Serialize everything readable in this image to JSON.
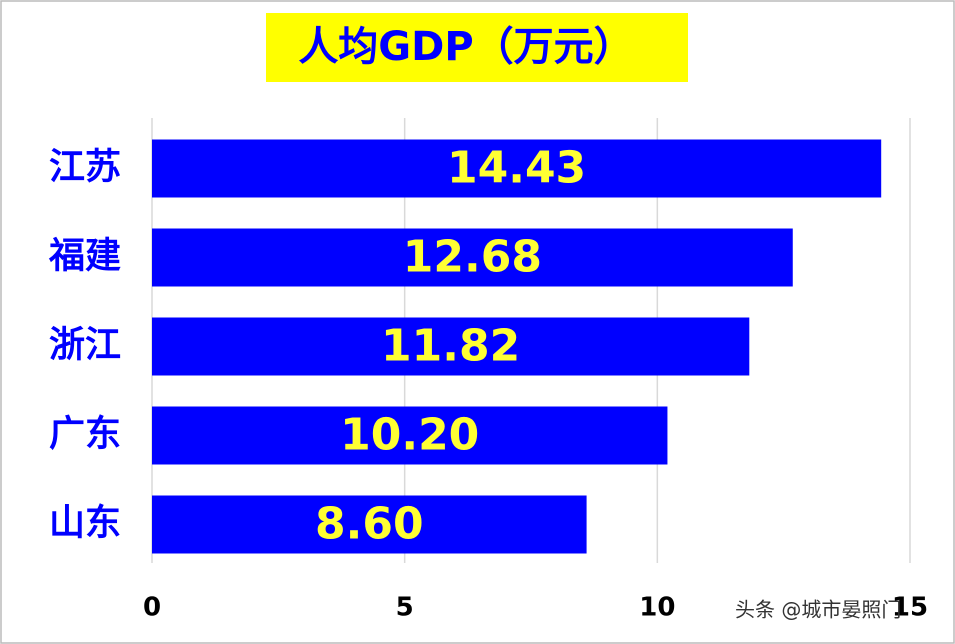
{
  "chart_data": {
    "type": "hbar",
    "title": "人均GDP（万元）",
    "categories": [
      "江苏",
      "福建",
      "浙江",
      "广东",
      "山东"
    ],
    "values": [
      14.43,
      12.68,
      11.82,
      10.2,
      8.6
    ],
    "value_labels": [
      "14.43",
      "12.68",
      "11.82",
      "10.20",
      "8.60"
    ],
    "color": "#0000ff",
    "label_color": "#ffff33",
    "xlim": [
      0,
      15
    ],
    "xticks": [
      0,
      5,
      10,
      15
    ],
    "grid": true
  },
  "watermark": "头条 @城市晏照门"
}
